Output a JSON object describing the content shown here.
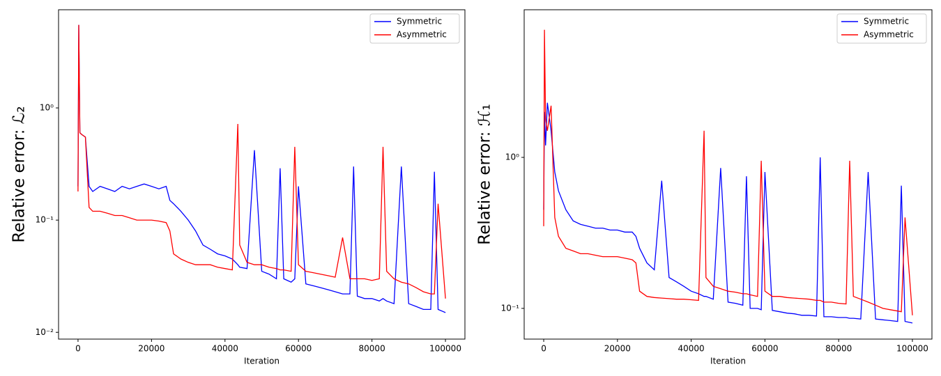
{
  "chart_data": [
    {
      "type": "line",
      "ylabel": "Relative error: ℒ₂",
      "xlabel": "Iteration",
      "log_y": true,
      "legend": "upper right",
      "xlim": [
        -5300,
        105300
      ],
      "ylim": [
        0.0087,
        7.5
      ],
      "xticks": [
        0,
        20000,
        40000,
        60000,
        80000,
        100000
      ],
      "yticks": [
        {
          "value": 0.01,
          "label": "10⁻²"
        },
        {
          "value": 0.1,
          "label": "10⁻¹"
        },
        {
          "value": 1,
          "label": "10⁰"
        }
      ],
      "x": [
        0,
        200,
        500,
        1000,
        2000,
        3000,
        4000,
        6000,
        8000,
        10000,
        12000,
        14000,
        16000,
        18000,
        20000,
        22000,
        24000,
        25000,
        26000,
        28000,
        30000,
        32000,
        34000,
        36000,
        38000,
        40000,
        42000,
        43500,
        44000,
        46000,
        48000,
        50000,
        52000,
        54000,
        55000,
        56000,
        58000,
        59000,
        60000,
        62000,
        64000,
        66000,
        68000,
        70000,
        72000,
        74000,
        75000,
        76000,
        78000,
        80000,
        82000,
        83000,
        84000,
        86000,
        88000,
        90000,
        92000,
        94000,
        96000,
        97000,
        98000,
        100000
      ],
      "series": [
        {
          "name": "Symmetric",
          "color": "#0000ff",
          "values": [
            0.2,
            5.5,
            0.6,
            0.58,
            0.55,
            0.2,
            0.18,
            0.2,
            0.19,
            0.18,
            0.2,
            0.19,
            0.2,
            0.21,
            0.2,
            0.19,
            0.2,
            0.15,
            0.14,
            0.12,
            0.1,
            0.08,
            0.06,
            0.055,
            0.05,
            0.048,
            0.045,
            0.04,
            0.038,
            0.037,
            0.42,
            0.035,
            0.033,
            0.03,
            0.29,
            0.03,
            0.028,
            0.03,
            0.2,
            0.027,
            0.026,
            0.025,
            0.024,
            0.023,
            0.022,
            0.022,
            0.3,
            0.021,
            0.02,
            0.02,
            0.019,
            0.02,
            0.019,
            0.018,
            0.3,
            0.018,
            0.017,
            0.016,
            0.016,
            0.27,
            0.016,
            0.015
          ]
        },
        {
          "name": "Asymmetric",
          "color": "#ff0000",
          "values": [
            0.18,
            5.5,
            0.6,
            0.58,
            0.55,
            0.13,
            0.12,
            0.12,
            0.115,
            0.11,
            0.11,
            0.105,
            0.1,
            0.1,
            0.1,
            0.098,
            0.095,
            0.08,
            0.05,
            0.045,
            0.042,
            0.04,
            0.04,
            0.04,
            0.038,
            0.037,
            0.036,
            0.72,
            0.06,
            0.042,
            0.04,
            0.04,
            0.038,
            0.037,
            0.036,
            0.036,
            0.035,
            0.45,
            0.04,
            0.035,
            0.034,
            0.033,
            0.032,
            0.031,
            0.07,
            0.03,
            0.03,
            0.03,
            0.03,
            0.029,
            0.03,
            0.45,
            0.035,
            0.03,
            0.028,
            0.027,
            0.025,
            0.023,
            0.022,
            0.022,
            0.14,
            0.02
          ]
        }
      ]
    },
    {
      "type": "line",
      "ylabel": "Relative error: ℋ₁",
      "xlabel": "Iteration",
      "log_y": true,
      "legend": "upper right",
      "xlim": [
        -5300,
        105300
      ],
      "ylim": [
        0.0626,
        9.5
      ],
      "xticks": [
        0,
        20000,
        40000,
        60000,
        80000,
        100000
      ],
      "yticks": [
        {
          "value": 0.1,
          "label": "10⁻¹"
        },
        {
          "value": 1,
          "label": "10⁰"
        }
      ],
      "x": [
        0,
        200,
        500,
        1000,
        2000,
        3000,
        4000,
        6000,
        8000,
        10000,
        12000,
        14000,
        16000,
        18000,
        20000,
        22000,
        24000,
        25000,
        26000,
        28000,
        30000,
        32000,
        34000,
        36000,
        38000,
        40000,
        42000,
        43500,
        44000,
        46000,
        48000,
        50000,
        52000,
        54000,
        55000,
        56000,
        58000,
        59000,
        60000,
        62000,
        64000,
        66000,
        68000,
        70000,
        72000,
        74000,
        75000,
        76000,
        78000,
        80000,
        82000,
        83000,
        84000,
        86000,
        88000,
        90000,
        92000,
        94000,
        96000,
        97000,
        98000,
        100000
      ],
      "series": [
        {
          "name": "Symmetric",
          "color": "#0000ff",
          "values": [
            0.45,
            2.0,
            1.2,
            2.3,
            1.5,
            0.8,
            0.6,
            0.45,
            0.38,
            0.36,
            0.35,
            0.34,
            0.34,
            0.33,
            0.33,
            0.32,
            0.32,
            0.3,
            0.25,
            0.2,
            0.18,
            0.7,
            0.16,
            0.15,
            0.14,
            0.13,
            0.125,
            0.12,
            0.12,
            0.115,
            0.85,
            0.11,
            0.108,
            0.105,
            0.75,
            0.1,
            0.1,
            0.098,
            0.8,
            0.097,
            0.095,
            0.093,
            0.092,
            0.09,
            0.09,
            0.089,
            1.0,
            0.088,
            0.088,
            0.087,
            0.087,
            0.086,
            0.086,
            0.085,
            0.8,
            0.085,
            0.084,
            0.083,
            0.082,
            0.65,
            0.082,
            0.08
          ]
        },
        {
          "name": "Asymmetric",
          "color": "#ff0000",
          "values": [
            0.35,
            7.0,
            1.8,
            1.5,
            2.2,
            0.4,
            0.3,
            0.25,
            0.24,
            0.23,
            0.23,
            0.225,
            0.22,
            0.22,
            0.22,
            0.215,
            0.21,
            0.2,
            0.13,
            0.12,
            0.118,
            0.117,
            0.116,
            0.115,
            0.115,
            0.114,
            0.113,
            1.5,
            0.16,
            0.14,
            0.135,
            0.13,
            0.128,
            0.125,
            0.125,
            0.123,
            0.12,
            0.95,
            0.13,
            0.12,
            0.12,
            0.118,
            0.117,
            0.116,
            0.115,
            0.113,
            0.113,
            0.11,
            0.11,
            0.108,
            0.107,
            0.95,
            0.12,
            0.115,
            0.11,
            0.105,
            0.1,
            0.098,
            0.096,
            0.095,
            0.4,
            0.09
          ]
        }
      ]
    }
  ]
}
